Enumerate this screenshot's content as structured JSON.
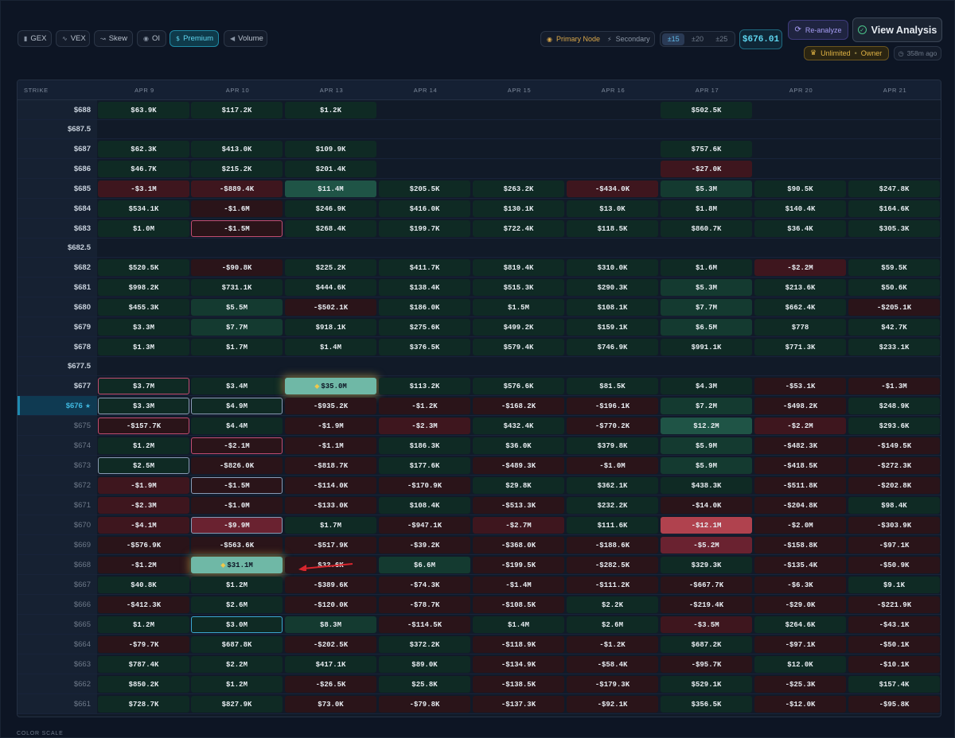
{
  "tabs": [
    {
      "icon": "▮",
      "label": "GEX"
    },
    {
      "icon": "∿",
      "label": "VEX"
    },
    {
      "icon": "↝",
      "label": "Skew"
    },
    {
      "icon": "◉",
      "label": "OI"
    },
    {
      "icon": "$",
      "label": "Premium"
    },
    {
      "icon": "◀",
      "label": "Volume"
    }
  ],
  "node": {
    "primary": "Primary Node",
    "secondary": "Secondary"
  },
  "ranges": [
    "±15",
    "±20",
    "±25"
  ],
  "price": "$676.01",
  "reanalyze_label": "Re-analyze",
  "view_label": "View Analysis",
  "owner": {
    "plan": "Unlimited",
    "role": "Owner"
  },
  "ago": "358m ago",
  "grid": {
    "strike_header": "STRIKE",
    "columns": [
      "APR 9",
      "APR 10",
      "APR 13",
      "APR 14",
      "APR 15",
      "APR 16",
      "APR 17",
      "APR 20",
      "APR 21"
    ],
    "rows": [
      {
        "strike": "$688",
        "cells": [
          "$63.9K",
          "$117.2K",
          "$1.2K",
          "",
          "",
          "",
          "$502.5K",
          "",
          ""
        ]
      },
      {
        "strike": "$687.5",
        "cells": [
          "",
          "",
          "",
          "",
          "",
          "",
          "",
          "",
          ""
        ]
      },
      {
        "strike": "$687",
        "cells": [
          "$62.3K",
          "$413.0K",
          "$109.9K",
          "",
          "",
          "",
          "$757.6K",
          "",
          ""
        ]
      },
      {
        "strike": "$686",
        "cells": [
          "$46.7K",
          "$215.2K",
          "$201.4K",
          "",
          "",
          "",
          "-$27.0K",
          "",
          ""
        ]
      },
      {
        "strike": "$685",
        "cells": [
          "-$3.1M",
          "-$889.4K",
          "$11.4M",
          "$205.5K",
          "$263.2K",
          "-$434.0K",
          "$5.3M",
          "$90.5K",
          "$247.8K"
        ]
      },
      {
        "strike": "$684",
        "cells": [
          "$534.1K",
          "-$1.6M",
          "$246.9K",
          "$416.0K",
          "$130.1K",
          "$13.0K",
          "$1.8M",
          "$140.4K",
          "$164.6K"
        ]
      },
      {
        "strike": "$683",
        "cells": [
          "$1.0M",
          "-$1.5M",
          "$268.4K",
          "$199.7K",
          "$722.4K",
          "$118.5K",
          "$860.7K",
          "$36.4K",
          "$305.3K"
        ]
      },
      {
        "strike": "$682.5",
        "cells": [
          "",
          "",
          "",
          "",
          "",
          "",
          "",
          "",
          ""
        ]
      },
      {
        "strike": "$682",
        "cells": [
          "$520.5K",
          "-$90.8K",
          "$225.2K",
          "$411.7K",
          "$819.4K",
          "$310.0K",
          "$1.6M",
          "-$2.2M",
          "$59.5K"
        ]
      },
      {
        "strike": "$681",
        "cells": [
          "$998.2K",
          "$731.1K",
          "$444.6K",
          "$138.4K",
          "$515.3K",
          "$290.3K",
          "$5.3M",
          "$213.6K",
          "$50.6K"
        ]
      },
      {
        "strike": "$680",
        "cells": [
          "$455.3K",
          "$5.5M",
          "-$502.1K",
          "$186.0K",
          "$1.5M",
          "$108.1K",
          "$7.7M",
          "$662.4K",
          "-$205.1K"
        ]
      },
      {
        "strike": "$679",
        "cells": [
          "$3.3M",
          "$7.7M",
          "$918.1K",
          "$275.6K",
          "$499.2K",
          "$159.1K",
          "$6.5M",
          "$778",
          "$42.7K"
        ]
      },
      {
        "strike": "$678",
        "cells": [
          "$1.3M",
          "$1.7M",
          "$1.4M",
          "$376.5K",
          "$579.4K",
          "$746.9K",
          "$991.1K",
          "$771.3K",
          "$233.1K"
        ]
      },
      {
        "strike": "$677.5",
        "cells": [
          "",
          "",
          "",
          "",
          "",
          "",
          "",
          "",
          ""
        ]
      },
      {
        "strike": "$677",
        "cells": [
          "$3.7M",
          "$3.4M",
          "$35.0M",
          "$113.2K",
          "$576.6K",
          "$81.5K",
          "$4.3M",
          "-$53.1K",
          "-$1.3M"
        ]
      },
      {
        "strike": "$676",
        "cells": [
          "$3.3M",
          "$4.9M",
          "-$935.2K",
          "-$1.2K",
          "-$168.2K",
          "-$196.1K",
          "$7.2M",
          "-$498.2K",
          "$248.9K"
        ]
      },
      {
        "strike": "$675",
        "cells": [
          "-$157.7K",
          "$4.4M",
          "-$1.9M",
          "-$2.3M",
          "$432.4K",
          "-$770.2K",
          "$12.2M",
          "-$2.2M",
          "$293.6K"
        ]
      },
      {
        "strike": "$674",
        "cells": [
          "$1.2M",
          "-$2.1M",
          "-$1.1M",
          "$186.3K",
          "$36.0K",
          "$379.8K",
          "$5.9M",
          "-$482.3K",
          "-$149.5K"
        ]
      },
      {
        "strike": "$673",
        "cells": [
          "$2.5M",
          "-$826.0K",
          "-$818.7K",
          "$177.6K",
          "-$489.3K",
          "-$1.0M",
          "$5.9M",
          "-$418.5K",
          "-$272.3K"
        ]
      },
      {
        "strike": "$672",
        "cells": [
          "-$1.9M",
          "-$1.5M",
          "-$114.0K",
          "-$170.9K",
          "$29.8K",
          "$362.1K",
          "$438.3K",
          "-$511.8K",
          "-$202.8K"
        ]
      },
      {
        "strike": "$671",
        "cells": [
          "-$2.3M",
          "-$1.0M",
          "-$133.0K",
          "$108.4K",
          "-$513.3K",
          "$232.2K",
          "-$14.0K",
          "-$204.8K",
          "$98.4K"
        ]
      },
      {
        "strike": "$670",
        "cells": [
          "-$4.1M",
          "-$9.9M",
          "$1.7M",
          "-$947.1K",
          "-$2.7M",
          "$111.6K",
          "-$12.1M",
          "-$2.0M",
          "-$303.9K"
        ]
      },
      {
        "strike": "$669",
        "cells": [
          "-$576.9K",
          "-$563.6K",
          "-$517.9K",
          "-$39.2K",
          "-$368.0K",
          "-$188.6K",
          "-$5.2M",
          "-$158.8K",
          "-$97.1K"
        ]
      },
      {
        "strike": "$668",
        "cells": [
          "-$1.2M",
          "$31.1M",
          "$32.6K",
          "$6.6M",
          "-$199.5K",
          "-$282.5K",
          "$329.3K",
          "-$135.4K",
          "-$50.9K"
        ]
      },
      {
        "strike": "$667",
        "cells": [
          "$40.8K",
          "$1.2M",
          "-$389.6K",
          "-$74.3K",
          "-$1.4M",
          "-$111.2K",
          "-$667.7K",
          "-$6.3K",
          "$9.1K"
        ]
      },
      {
        "strike": "$666",
        "cells": [
          "-$412.3K",
          "$2.6M",
          "-$120.0K",
          "-$78.7K",
          "-$108.5K",
          "$2.2K",
          "-$219.4K",
          "-$29.0K",
          "-$221.9K"
        ]
      },
      {
        "strike": "$665",
        "cells": [
          "$1.2M",
          "$3.0M",
          "$8.3M",
          "-$114.5K",
          "$1.4M",
          "$2.6M",
          "-$3.5M",
          "$264.6K",
          "-$43.1K"
        ]
      },
      {
        "strike": "$664",
        "cells": [
          "-$79.7K",
          "$687.8K",
          "-$202.5K",
          "$372.2K",
          "-$118.9K",
          "-$1.2K",
          "$687.2K",
          "-$97.1K",
          "-$50.1K"
        ]
      },
      {
        "strike": "$663",
        "cells": [
          "$787.4K",
          "$2.2M",
          "$417.1K",
          "$89.0K",
          "-$134.9K",
          "-$58.4K",
          "-$95.7K",
          "$12.0K",
          "-$10.1K"
        ]
      },
      {
        "strike": "$662",
        "cells": [
          "$850.2K",
          "$1.2M",
          "-$26.5K",
          "$25.8K",
          "-$138.5K",
          "-$179.3K",
          "$529.1K",
          "-$25.3K",
          "$157.4K"
        ]
      },
      {
        "strike": "$661",
        "cells": [
          "$728.7K",
          "$827.9K",
          "$73.0K",
          "-$79.8K",
          "-$137.3K",
          "-$92.1K",
          "$356.5K",
          "-$12.0K",
          "-$95.8K"
        ]
      }
    ]
  },
  "footer_label": "COLOR SCALE"
}
